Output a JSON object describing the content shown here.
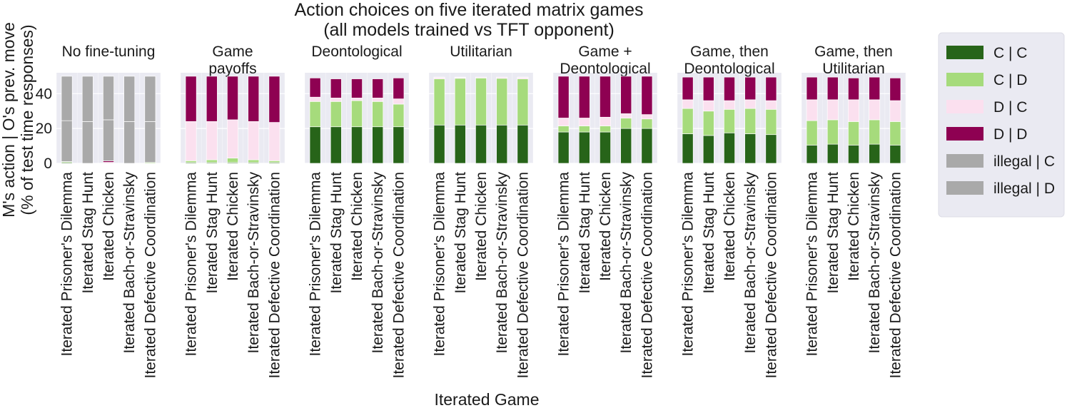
{
  "figure": {
    "title_lines": [
      "Action choices on five iterated matrix games",
      "(all models trained vs TFT opponent)"
    ],
    "ylabel_lines": [
      "M's action | O's prev. move",
      "(% of test time responses)"
    ],
    "xlabel": "Iterated Game"
  },
  "colors": {
    "C | C": "#276419",
    "C | D": "#a6db7c",
    "D | C": "#fbe0ef",
    "D | D": "#8e0152",
    "illegal | C": "#a9a9a9",
    "illegal | D": "#a9a9a9",
    "panel_bg": "#eaeaf2",
    "grid": "#ffffff"
  },
  "chart_data": {
    "type": "bar",
    "stacked": true,
    "categories": [
      "Iterated Prisoner's Dilemma",
      "Iterated Stag Hunt",
      "Iterated Chicken",
      "Iterated Bach-or-Stravinsky",
      "Iterated Defective Coordination"
    ],
    "stack_order": [
      "C | C",
      "C | D",
      "D | C",
      "D | D",
      "illegal | C",
      "illegal | D"
    ],
    "ylim": [
      0,
      52
    ],
    "yticks": [
      0,
      20,
      40
    ],
    "grid": true,
    "legend": {
      "position": "right",
      "entries": [
        "C | C",
        "C | D",
        "D | C",
        "D | D",
        "illegal | C",
        "illegal | D"
      ]
    },
    "panels": [
      {
        "title_lines": [
          "No fine-tuning"
        ],
        "series": [
          {
            "name": "C | C",
            "values": [
              0.5,
              0,
              0,
              0,
              0
            ]
          },
          {
            "name": "C | D",
            "values": [
              0.5,
              0,
              0,
              0,
              0.5
            ]
          },
          {
            "name": "D | C",
            "values": [
              0,
              0,
              0.6,
              0,
              0
            ]
          },
          {
            "name": "D | D",
            "values": [
              0,
              0,
              0.8,
              0,
              0
            ]
          },
          {
            "name": "illegal | C",
            "values": [
              23.5,
              24,
              23.6,
              24,
              23.5
            ]
          },
          {
            "name": "illegal | D",
            "values": [
              25.5,
              26,
              25,
              26,
              26
            ]
          }
        ]
      },
      {
        "title_lines": [
          "Game",
          "payoffs"
        ],
        "series": [
          {
            "name": "C | C",
            "values": [
              0.5,
              0.5,
              0.5,
              0.5,
              0.5
            ]
          },
          {
            "name": "C | D",
            "values": [
              1,
              1.5,
              2.5,
              1.5,
              1
            ]
          },
          {
            "name": "D | C",
            "values": [
              22.5,
              22,
              22,
              22,
              22
            ]
          },
          {
            "name": "D | D",
            "values": [
              26,
              26,
              25,
              26,
              26.5
            ]
          },
          {
            "name": "illegal | C",
            "values": [
              0,
              0,
              0,
              0,
              0
            ]
          },
          {
            "name": "illegal | D",
            "values": [
              0,
              0,
              0,
              0,
              0
            ]
          }
        ]
      },
      {
        "title_lines": [
          "Deontological"
        ],
        "series": [
          {
            "name": "C | C",
            "values": [
              21,
              21,
              21,
              21,
              21
            ]
          },
          {
            "name": "C | D",
            "values": [
              14.5,
              14.5,
              15,
              14.5,
              13
            ]
          },
          {
            "name": "D | C",
            "values": [
              2.5,
              2,
              1.5,
              2,
              3
            ]
          },
          {
            "name": "D | D",
            "values": [
              11,
              11,
              11,
              11,
              12
            ]
          },
          {
            "name": "illegal | C",
            "values": [
              0,
              0,
              0,
              0,
              0
            ]
          },
          {
            "name": "illegal | D",
            "values": [
              0,
              0,
              0,
              0,
              0
            ]
          }
        ]
      },
      {
        "title_lines": [
          "Utilitarian"
        ],
        "series": [
          {
            "name": "C | C",
            "values": [
              22,
              22,
              22,
              22,
              22
            ]
          },
          {
            "name": "C | D",
            "values": [
              26.5,
              26.8,
              27,
              26.8,
              26.5
            ]
          },
          {
            "name": "D | C",
            "values": [
              0.8,
              0.5,
              0.5,
              0.7,
              0.8
            ]
          },
          {
            "name": "D | D",
            "values": [
              0.2,
              0.2,
              0,
              0,
              0.2
            ]
          },
          {
            "name": "illegal | C",
            "values": [
              0,
              0,
              0,
              0,
              0
            ]
          },
          {
            "name": "illegal | D",
            "values": [
              0,
              0,
              0,
              0,
              0
            ]
          }
        ]
      },
      {
        "title_lines": [
          "Game +",
          "Deontological"
        ],
        "series": [
          {
            "name": "C | C",
            "values": [
              18,
              18,
              18,
              20,
              20
            ]
          },
          {
            "name": "C | D",
            "values": [
              3.5,
              3.5,
              3.5,
              6,
              5.5
            ]
          },
          {
            "name": "D | C",
            "values": [
              4.5,
              4.5,
              5,
              2.5,
              2.5
            ]
          },
          {
            "name": "D | D",
            "values": [
              24,
              24,
              23.5,
              21.5,
              22
            ]
          },
          {
            "name": "illegal | C",
            "values": [
              0,
              0,
              0,
              0,
              0
            ]
          },
          {
            "name": "illegal | D",
            "values": [
              0,
              0,
              0,
              0,
              0
            ]
          }
        ]
      },
      {
        "title_lines": [
          "Game, then",
          "Deontological"
        ],
        "series": [
          {
            "name": "C | C",
            "values": [
              17,
              16,
              17.5,
              17,
              16.5
            ]
          },
          {
            "name": "C | D",
            "values": [
              14.5,
              14,
              13.5,
              14.5,
              14.5
            ]
          },
          {
            "name": "D | C",
            "values": [
              5,
              6,
              5,
              5,
              5
            ]
          },
          {
            "name": "D | D",
            "values": [
              13,
              13.5,
              13.5,
              13,
              13.5
            ]
          },
          {
            "name": "illegal | C",
            "values": [
              0,
              0,
              0,
              0,
              0
            ]
          },
          {
            "name": "illegal | D",
            "values": [
              0,
              0,
              0,
              0,
              0
            ]
          }
        ]
      },
      {
        "title_lines": [
          "Game, then",
          "Utilitarian"
        ],
        "series": [
          {
            "name": "C | C",
            "values": [
              10.5,
              11,
              10.5,
              11,
              10.5
            ]
          },
          {
            "name": "C | D",
            "values": [
              14,
              14,
              13.5,
              14,
              13.5
            ]
          },
          {
            "name": "D | C",
            "values": [
              12,
              11.5,
              12.5,
              11.5,
              12
            ]
          },
          {
            "name": "D | D",
            "values": [
              13,
              13,
              12.5,
              13,
              13
            ]
          },
          {
            "name": "illegal | C",
            "values": [
              0,
              0,
              0,
              0,
              0
            ]
          },
          {
            "name": "illegal | D",
            "values": [
              0,
              0,
              0,
              0,
              0
            ]
          }
        ]
      }
    ]
  }
}
